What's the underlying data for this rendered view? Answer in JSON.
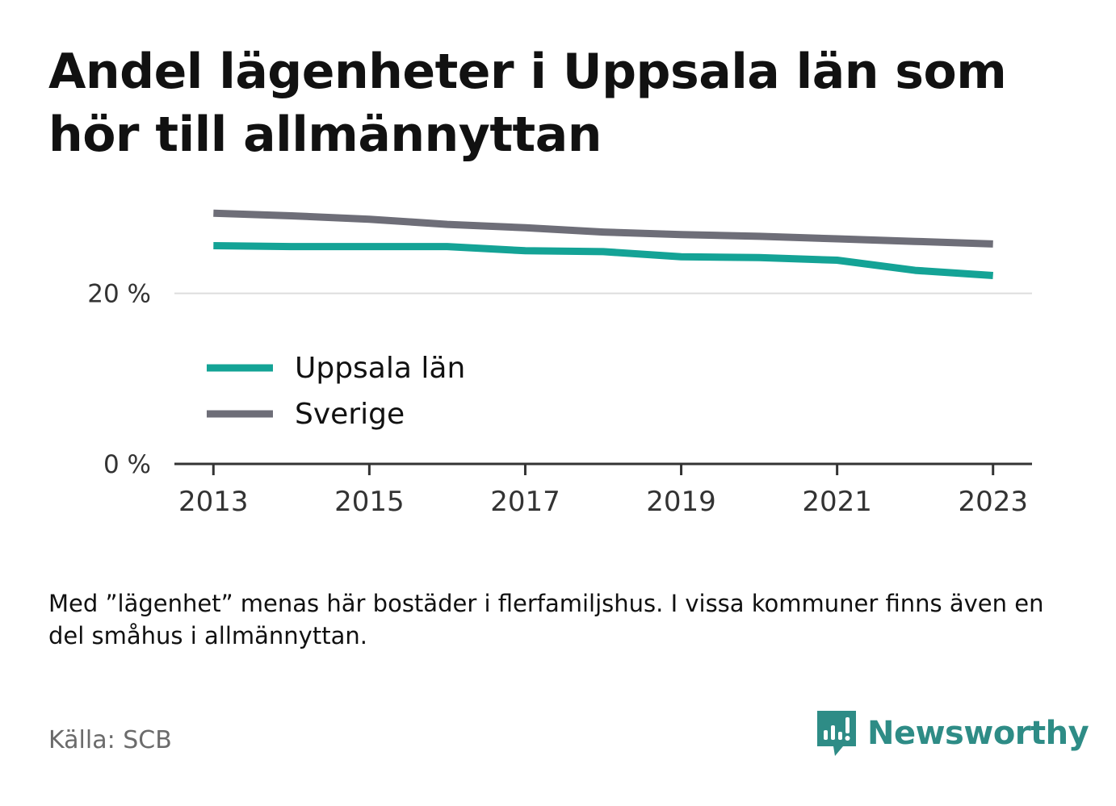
{
  "title": "Andel lägenheter i Uppsala län som hör till allmännyttan",
  "note": "Med ”lägenhet” menas här bostäder i flerfamiljshus. I vissa kommuner finns även en del småhus i allmännyttan.",
  "source": "Källa: SCB",
  "brand": {
    "name": "Newsworthy",
    "icon": "newsworthy-logo-icon",
    "color": "#2e8c86"
  },
  "colors": {
    "uppsala": "#14a396",
    "sverige": "#6e6e78",
    "grid": "#dddddd",
    "axis": "#333333"
  },
  "chart_data": {
    "type": "line",
    "x": [
      2013,
      2014,
      2015,
      2016,
      2017,
      2018,
      2019,
      2020,
      2021,
      2022,
      2023
    ],
    "xticks": [
      "2013",
      "2015",
      "2017",
      "2019",
      "2021",
      "2023"
    ],
    "yticks": [
      "0 %",
      "20 %"
    ],
    "ylim": [
      0,
      30
    ],
    "xlim": [
      2012.5,
      2023.5
    ],
    "grid": true,
    "legend": "inside-left",
    "series": [
      {
        "name": "Uppsala län",
        "key": "uppsala",
        "values": [
          25.6,
          25.5,
          25.5,
          25.5,
          25.0,
          24.9,
          24.3,
          24.2,
          23.9,
          22.7,
          22.1
        ]
      },
      {
        "name": "Sverige",
        "key": "sverige",
        "values": [
          29.4,
          29.1,
          28.7,
          28.1,
          27.7,
          27.2,
          26.9,
          26.7,
          26.4,
          26.1,
          25.8
        ]
      }
    ]
  }
}
